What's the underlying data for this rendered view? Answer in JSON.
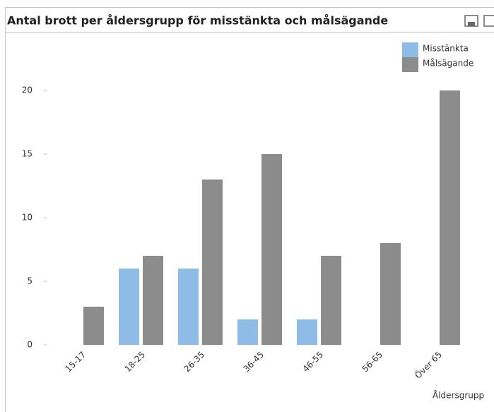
{
  "chart_data": {
    "type": "bar",
    "title": "Antal brott per åldersgrupp för misstänkta och målsägande",
    "x_label": "Åldersgrupp",
    "categories": [
      "15-17",
      "18-25",
      "26-35",
      "36-45",
      "46-55",
      "56-65",
      "Över 65"
    ],
    "series": [
      {
        "name": "Misstänkta",
        "color": "#8fbce6",
        "values": [
          0,
          6,
          6,
          2,
          2,
          0,
          0
        ]
      },
      {
        "name": "Målsägande",
        "color": "#8c8c8c",
        "values": [
          3,
          7,
          13,
          15,
          7,
          8,
          20
        ]
      }
    ],
    "ylim": [
      0,
      20
    ],
    "yticks": [
      0,
      5,
      10,
      15,
      20
    ],
    "grid": false,
    "legend": "top-right"
  }
}
